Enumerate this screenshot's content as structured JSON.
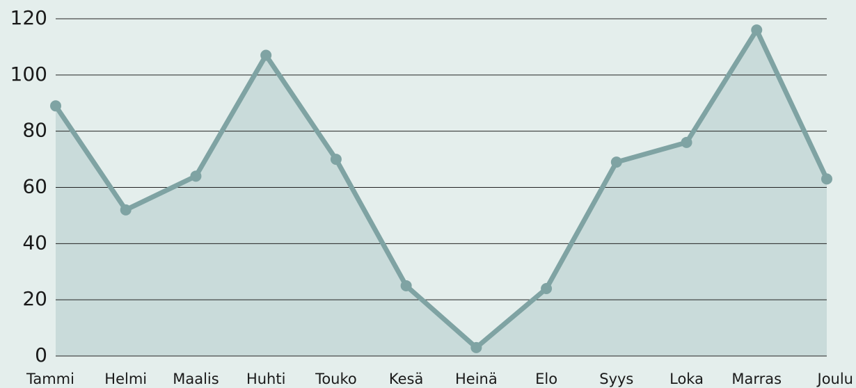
{
  "chart_data": {
    "type": "area",
    "categories": [
      "Tammi",
      "Helmi",
      "Maalis",
      "Huhti",
      "Touko",
      "Kesä",
      "Heinä",
      "Elo",
      "Syys",
      "Loka",
      "Marras",
      "Joulu"
    ],
    "values": [
      89,
      52,
      64,
      107,
      70,
      25,
      3,
      24,
      69,
      76,
      116,
      63
    ],
    "color": "#7fa3a3",
    "fill_color": "#c9dbda",
    "ylim": [
      0,
      120
    ],
    "yticks": [
      0,
      20,
      40,
      60,
      80,
      100,
      120
    ],
    "grid": true
  }
}
